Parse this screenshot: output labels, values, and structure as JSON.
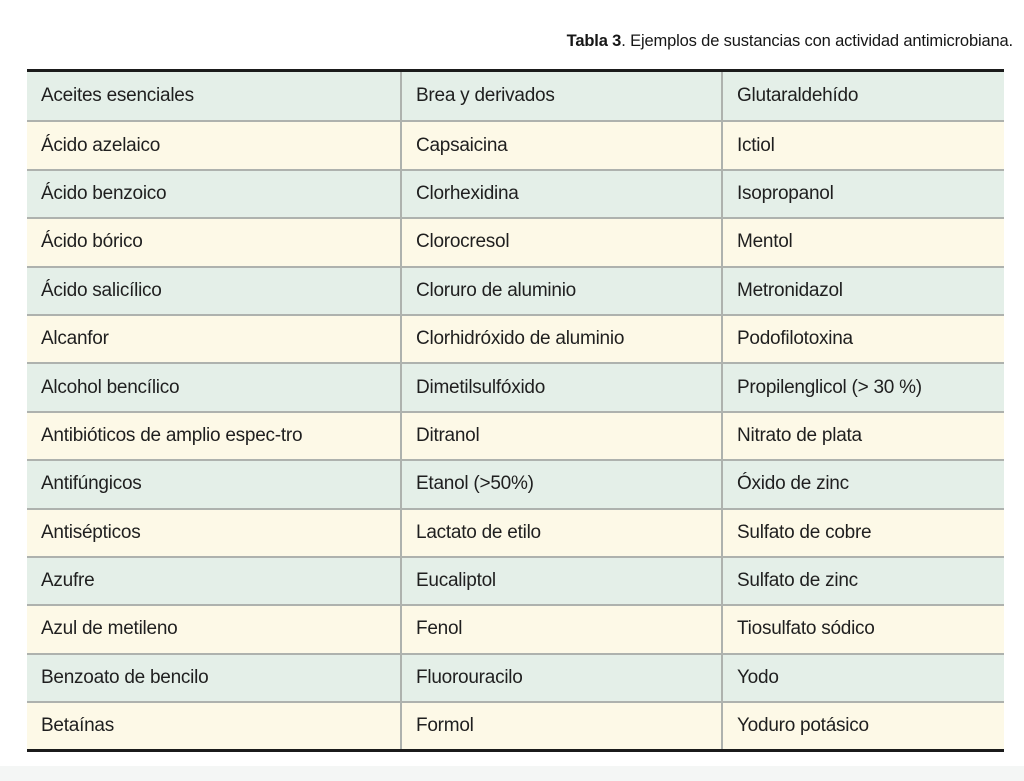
{
  "caption": {
    "bold": "Tabla 3",
    "rest": ". Ejemplos de sustancias con actividad antimicrobiana."
  },
  "colors": {
    "row_mint": "#e4efe8",
    "row_cream": "#fdf9e7",
    "border_dark": "#1b1b1b",
    "grid_gray": "#aeb2ae",
    "text": "#1f1f1f",
    "bottom_strip": "#f4f6f5"
  },
  "chart_data": {
    "type": "table",
    "title": "Tabla 3. Ejemplos de sustancias con actividad antimicrobiana.",
    "column_headers": [],
    "layout": {
      "columns": 3,
      "row_count": 14,
      "alternating_rows": true,
      "first_row_color": "mint"
    },
    "rows": [
      [
        "Aceites esenciales",
        "Brea y derivados",
        "Glutaraldehído"
      ],
      [
        "Ácido azelaico",
        "Capsaicina",
        "Ictiol"
      ],
      [
        "Ácido benzoico",
        "Clorhexidina",
        "Isopropanol"
      ],
      [
        "Ácido bórico",
        "Clorocresol",
        "Mentol"
      ],
      [
        "Ácido salicílico",
        "Cloruro de aluminio",
        "Metronidazol"
      ],
      [
        "Alcanfor",
        "Clorhidróxido de aluminio",
        "Podofilotoxina"
      ],
      [
        "Alcohol bencílico",
        "Dimetilsulfóxido",
        "Propilenglicol (> 30 %)"
      ],
      [
        "Antibióticos de amplio espec-tro",
        "Ditranol",
        "Nitrato de plata"
      ],
      [
        "Antifúngicos",
        "Etanol (>50%)",
        "Óxido de zinc"
      ],
      [
        "Antisépticos",
        "Lactato de etilo",
        "Sulfato de cobre"
      ],
      [
        "Azufre",
        "Eucaliptol",
        "Sulfato de zinc"
      ],
      [
        "Azul de metileno",
        "Fenol",
        "Tiosulfato sódico"
      ],
      [
        "Benzoato de bencilo",
        "Fluorouracilo",
        "Yodo"
      ],
      [
        "Betaínas",
        "Formol",
        "Yoduro potásico"
      ]
    ]
  }
}
